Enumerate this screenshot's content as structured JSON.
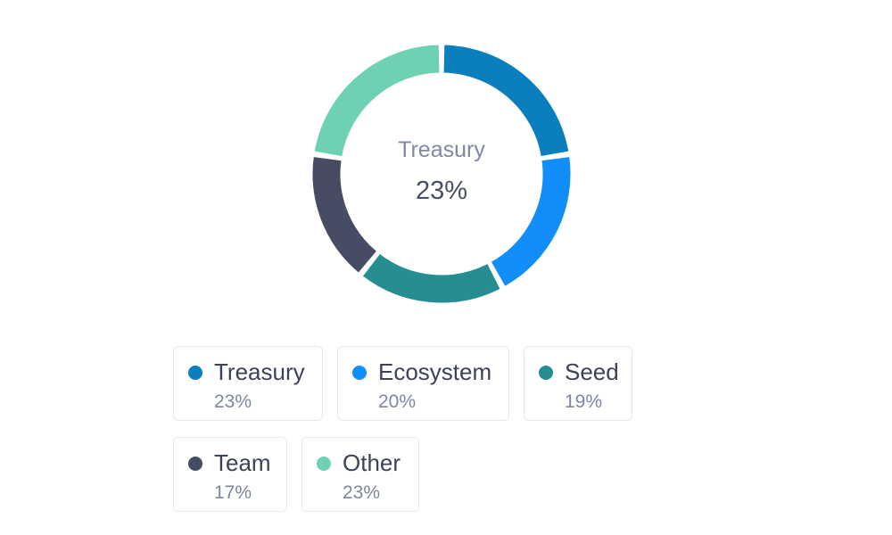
{
  "chart_data": {
    "type": "pie",
    "variant": "donut",
    "title": "",
    "center": {
      "name": "Treasury",
      "percent": "23%"
    },
    "categories": [
      "Treasury",
      "Ecosystem",
      "Seed",
      "Team",
      "Other"
    ],
    "values": [
      23,
      20,
      19,
      17,
      23
    ],
    "labels": [
      "23%",
      "20%",
      "19%",
      "17%",
      "23%"
    ],
    "colors": [
      "#0b7fbd",
      "#118ef9",
      "#268e91",
      "#454c64",
      "#6fd1b3"
    ],
    "start_angle_deg": 0,
    "legend": "bottom"
  }
}
